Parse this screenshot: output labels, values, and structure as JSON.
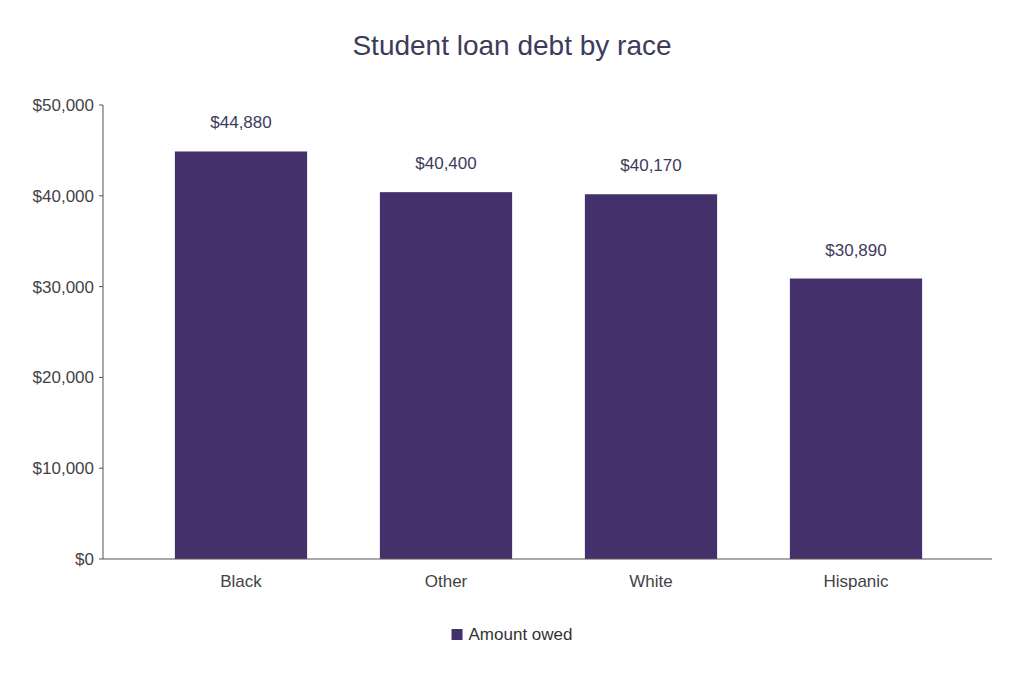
{
  "chart_data": {
    "type": "bar",
    "title": "Student loan debt by race",
    "categories": [
      "Black",
      "Other",
      "White",
      "Hispanic"
    ],
    "series": [
      {
        "name": "Amount owed",
        "color": "#44306b",
        "values": [
          44880,
          40400,
          40170,
          30890
        ],
        "value_labels": [
          "$44,880",
          "$40,400",
          "$40,170",
          "$30,890"
        ]
      }
    ],
    "ylim": [
      0,
      50000
    ],
    "yticks": [
      {
        "value": 0,
        "label": "$0"
      },
      {
        "value": 10000,
        "label": "$10,000"
      },
      {
        "value": 20000,
        "label": "$20,000"
      },
      {
        "value": 30000,
        "label": "$30,000"
      },
      {
        "value": 40000,
        "label": "$40,000"
      },
      {
        "value": 50000,
        "label": "$50,000"
      }
    ],
    "grid": false,
    "legend": "bottom",
    "data_labels": true
  }
}
